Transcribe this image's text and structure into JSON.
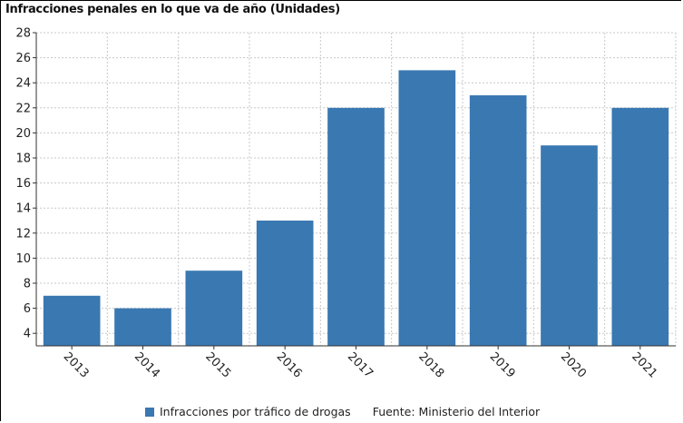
{
  "chart_data": {
    "type": "bar",
    "title": "Infracciones penales en lo que va de año (Unidades)",
    "categories": [
      "2013",
      "2014",
      "2015",
      "2016",
      "2017",
      "2018",
      "2019",
      "2020",
      "2021"
    ],
    "series": [
      {
        "name": "Infracciones por tráfico de drogas",
        "values": [
          7,
          6,
          9,
          13,
          22,
          25,
          23,
          19,
          22
        ]
      }
    ],
    "yticks": [
      4,
      6,
      8,
      10,
      12,
      14,
      16,
      18,
      20,
      22,
      24,
      26,
      28
    ],
    "ylim": [
      3,
      28
    ],
    "grid": true,
    "legend_position": "bottom",
    "bar_color": "#3a78b2",
    "source": "Fuente: Ministerio del Interior"
  }
}
